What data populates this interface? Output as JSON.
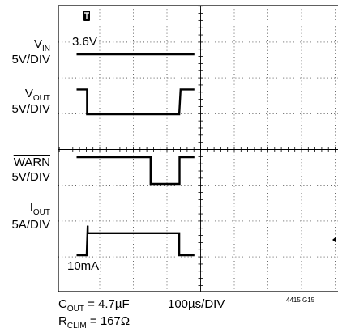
{
  "chart_data": {
    "type": "line",
    "title": "",
    "time_base": "100µs/DIV",
    "x_label": "100µs/DIV",
    "x_range_us": [
      -30,
      320
    ],
    "grid": true,
    "traces": [
      {
        "name": "V_IN",
        "label_main": "V",
        "label_sub": "IN",
        "scale": "5V/DIV",
        "x_us": [
          -30,
          320
        ],
        "y_v": [
          3.6,
          3.6
        ]
      },
      {
        "name": "V_OUT",
        "label_main": "V",
        "label_sub": "OUT",
        "scale": "5V/DIV",
        "x_us": [
          -30,
          1,
          1,
          275,
          279,
          320
        ],
        "y_v": [
          3.6,
          3.6,
          0,
          0,
          3.6,
          3.6
        ]
      },
      {
        "name": "WARN",
        "label_main": "WARN",
        "label_overline": true,
        "scale": "5V/DIV",
        "x_us": [
          -30,
          190,
          190,
          276,
          276,
          320
        ],
        "y_v": [
          5,
          5,
          0,
          0,
          5,
          5
        ]
      },
      {
        "name": "I_OUT",
        "label_main": "I",
        "label_sub": "OUT",
        "scale": "5A/DIV",
        "x_us": [
          -30,
          0,
          0,
          3,
          3,
          275,
          275,
          320
        ],
        "y_a": [
          0.01,
          0.01,
          0.4,
          7.5,
          5.6,
          5.6,
          0.01,
          0.01
        ]
      }
    ],
    "annotations": {
      "vin_level": "3.6V",
      "iout_level": "10mA",
      "cout": {
        "main": "C",
        "sub": "OUT",
        "rest": " = 4.7µF"
      },
      "rclim": {
        "main": "R",
        "sub": "CLIM",
        "rest": " = 167Ω"
      },
      "figure_id": "4415 G15"
    },
    "trigger_marker": "T"
  },
  "colors": {
    "trace": "#000000",
    "grid": "#000000",
    "background": "#ffffff"
  }
}
